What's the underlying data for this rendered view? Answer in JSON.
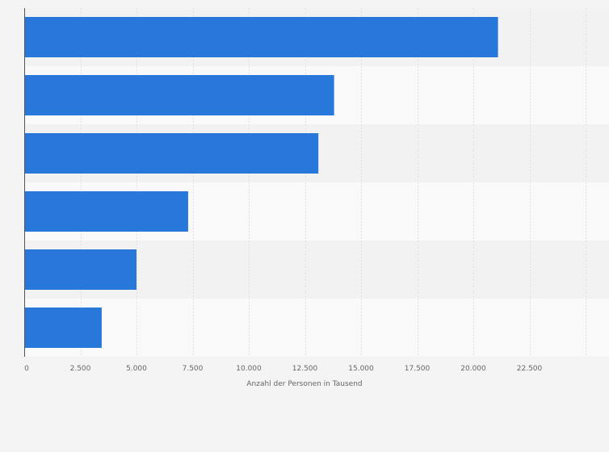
{
  "colors": {
    "bar": "#2878dc",
    "page_bg": "#f4f4f4",
    "band_dark": "#f2f2f2",
    "band_light": "#f9f9f9",
    "grid": "#e0e0e0",
    "axis": "#555555",
    "text": "#666666"
  },
  "chart_data": {
    "type": "bar",
    "orientation": "horizontal",
    "title": "",
    "categories": [
      "",
      "",
      "",
      "",
      "",
      ""
    ],
    "values": [
      21100,
      13800,
      13100,
      7300,
      5000,
      3450
    ],
    "xlabel": "Anzahl der Personen in Tausend",
    "ylabel": "",
    "xlim": [
      0,
      25000
    ],
    "xticks": [
      0,
      2500,
      5000,
      7500,
      10000,
      12500,
      15000,
      17500,
      20000,
      22500
    ],
    "xtick_labels": [
      "0",
      "2.500",
      "5.000",
      "7.500",
      "10.000",
      "12.500",
      "15.000",
      "17.500",
      "20.000",
      "22.500"
    ],
    "grid": true,
    "legend": "none"
  }
}
